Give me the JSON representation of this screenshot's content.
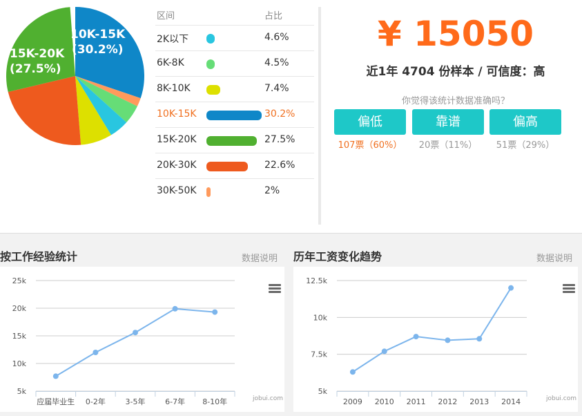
{
  "distribution": {
    "header": {
      "range": "区间",
      "share": "占比"
    },
    "rows": [
      {
        "label": "2K以下",
        "pct": "4.6%",
        "value": 4.6,
        "color": "#29c6e0"
      },
      {
        "label": "6K-8K",
        "pct": "4.5%",
        "value": 4.5,
        "color": "#66dd77"
      },
      {
        "label": "8K-10K",
        "pct": "7.4%",
        "value": 7.4,
        "color": "#dde000"
      },
      {
        "label": "10K-15K",
        "pct": "30.2%",
        "value": 30.2,
        "color": "#0f87c8",
        "active": true
      },
      {
        "label": "15K-20K",
        "pct": "27.5%",
        "value": 27.5,
        "color": "#50b030"
      },
      {
        "label": "20K-30K",
        "pct": "22.6%",
        "value": 22.6,
        "color": "#ee5a1e"
      },
      {
        "label": "30K-50K",
        "pct": "2%",
        "value": 2,
        "color": "#ff9a5c"
      }
    ]
  },
  "pie": {
    "labels": [
      {
        "text": "10K-15K",
        "sub": "(30.2%)"
      },
      {
        "text": "15K-20K",
        "sub": "(27.5%)"
      }
    ]
  },
  "summary": {
    "salary": "¥ 15050",
    "sample_text": "近1年 4704 份样本 / 可信度：高",
    "question": "你觉得该统计数据准确吗？",
    "buttons": [
      {
        "label": "偏低",
        "count": "107票（60%）",
        "active": true
      },
      {
        "label": "靠谱",
        "count": "20票（11%）"
      },
      {
        "label": "偏高",
        "count": "51票（29%）"
      }
    ]
  },
  "experience_panel": {
    "title": "按工作经验统计",
    "link": "数据说明"
  },
  "trend_panel": {
    "title": "历年工资变化趋势",
    "link": "数据说明"
  },
  "credit": "jobui.com",
  "colors": {
    "accent": "#ff6a1a",
    "teal": "#1ec8c8",
    "line": "#7cb5ec"
  },
  "chart_data": [
    {
      "type": "line",
      "title": "按工作经验统计",
      "categories": [
        "应届毕业生",
        "0-2年",
        "3-5年",
        "6-7年",
        "8-10年"
      ],
      "values": [
        7700,
        12000,
        15600,
        19900,
        19300
      ],
      "yticks": [
        "25k",
        "20k",
        "15k",
        "10k",
        "5k"
      ],
      "ylim": [
        5000,
        25000
      ],
      "grid": true
    },
    {
      "type": "line",
      "title": "历年工资变化趋势",
      "categories": [
        "2009",
        "2010",
        "2011",
        "2012",
        "2013",
        "2014"
      ],
      "values": [
        6300,
        7700,
        8700,
        8450,
        8550,
        12000
      ],
      "yticks": [
        "12.5k",
        "10k",
        "7.5k",
        "5k"
      ],
      "ylim": [
        5000,
        12500
      ],
      "grid": true
    }
  ]
}
